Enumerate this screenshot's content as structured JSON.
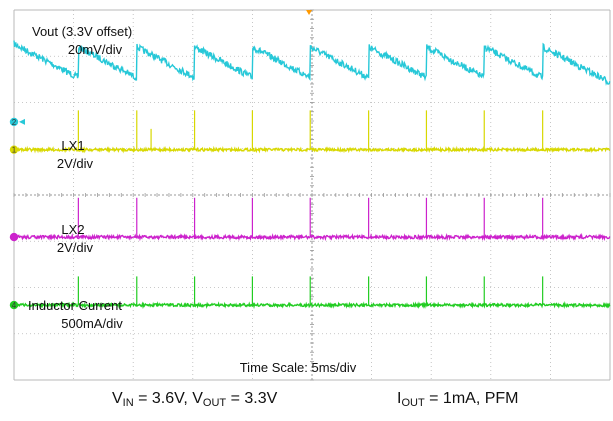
{
  "chart_data": {
    "type": "line",
    "grid": true,
    "x_divisions": 10,
    "y_divisions": 8,
    "time_scale_label": "Time Scale: 5ms/div",
    "colors": {
      "Vout": "#27c8d8",
      "LX1": "#d8d800",
      "LX2": "#cc22cc",
      "IL": "#22cc22",
      "grid": "#b8b8b8",
      "trigger": "#ff9900"
    },
    "channels": [
      {
        "id": "Vout",
        "label_lines": [
          "Vout (3.3V offset)",
          "20mV/div"
        ],
        "marker": "",
        "baseline_div": 1.15,
        "sawtooth_amp_div": 0.35,
        "noise_div": 0.07
      },
      {
        "id": "LX1",
        "label_lines": [
          "LX1",
          "2V/div"
        ],
        "marker": "2",
        "baseline_div": 3.02,
        "spike_height_div": 0.85,
        "noise_div": 0.03
      },
      {
        "id": "LX2",
        "label_lines": [
          "LX2",
          "2V/div"
        ],
        "marker": "",
        "baseline_div": 4.91,
        "spike_height_div": 0.85,
        "noise_div": 0.035
      },
      {
        "id": "IL",
        "label_lines": [
          "Inductor Current",
          "500mA/div"
        ],
        "marker": "4",
        "baseline_div": 6.38,
        "spike_height_div": 0.62,
        "noise_div": 0.03
      }
    ],
    "ref_markers": [
      {
        "text": "2",
        "color": "#27c8d8",
        "y_div": 2.42
      },
      {
        "text": "1",
        "color": "#d8d800",
        "y_div": 3.02
      },
      {
        "text": "",
        "color": "#cc22cc",
        "y_div": 4.91
      },
      {
        "text": "4",
        "color": "#22cc22",
        "y_div": 6.38
      }
    ],
    "pulse_times_div": [
      1.08,
      2.06,
      3.03,
      4.0,
      4.97,
      5.95,
      6.92,
      7.89,
      8.87
    ],
    "extra_lx1_spikes_div": [
      {
        "t": 2.3,
        "h": 0.45
      }
    ],
    "trigger_time_div": 4.95
  },
  "captions": {
    "left_parts": [
      {
        "t": "V"
      },
      {
        "t": "IN",
        "sub": true
      },
      {
        "t": " = 3.6V, V"
      },
      {
        "t": "OUT",
        "sub": true
      },
      {
        "t": " = 3.3V"
      }
    ],
    "right_parts": [
      {
        "t": "I"
      },
      {
        "t": "OUT",
        "sub": true
      },
      {
        "t": " = 1mA, PFM"
      }
    ]
  }
}
